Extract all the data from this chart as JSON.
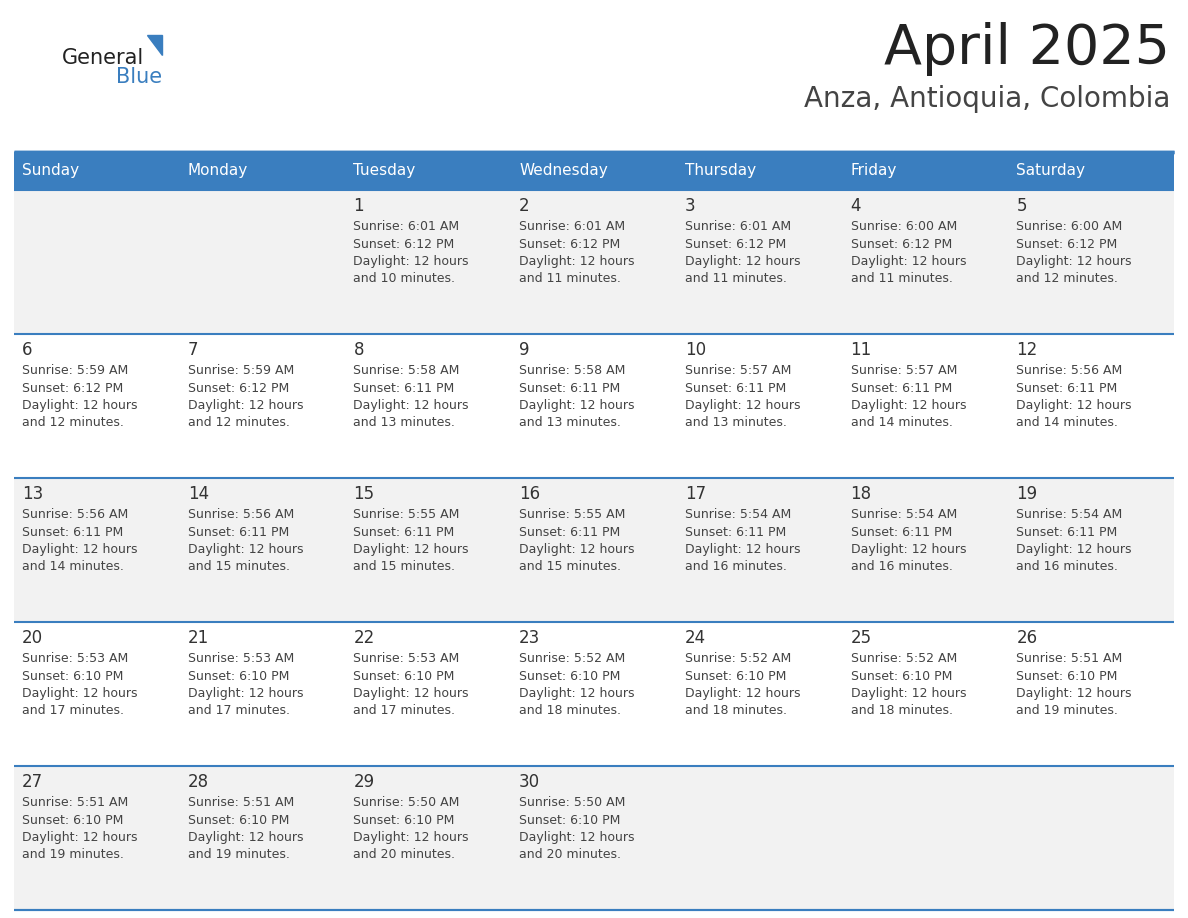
{
  "title": "April 2025",
  "subtitle": "Anza, Antioquia, Colombia",
  "days_of_week": [
    "Sunday",
    "Monday",
    "Tuesday",
    "Wednesday",
    "Thursday",
    "Friday",
    "Saturday"
  ],
  "header_bg": "#3a7ebf",
  "header_text": "#ffffff",
  "row_bg_odd": "#f2f2f2",
  "row_bg_even": "#ffffff",
  "separator_color": "#3a7ebf",
  "day_number_color": "#333333",
  "cell_text_color": "#444444",
  "title_color": "#222222",
  "subtitle_color": "#444444",
  "logo_text_color": "#222222",
  "logo_blue_color": "#3a7ebf",
  "calendar_data": [
    [
      null,
      null,
      {
        "day": 1,
        "sunrise": "6:01 AM",
        "sunset": "6:12 PM",
        "daylight_hrs": 12,
        "daylight_min": 10
      },
      {
        "day": 2,
        "sunrise": "6:01 AM",
        "sunset": "6:12 PM",
        "daylight_hrs": 12,
        "daylight_min": 11
      },
      {
        "day": 3,
        "sunrise": "6:01 AM",
        "sunset": "6:12 PM",
        "daylight_hrs": 12,
        "daylight_min": 11
      },
      {
        "day": 4,
        "sunrise": "6:00 AM",
        "sunset": "6:12 PM",
        "daylight_hrs": 12,
        "daylight_min": 11
      },
      {
        "day": 5,
        "sunrise": "6:00 AM",
        "sunset": "6:12 PM",
        "daylight_hrs": 12,
        "daylight_min": 12
      }
    ],
    [
      {
        "day": 6,
        "sunrise": "5:59 AM",
        "sunset": "6:12 PM",
        "daylight_hrs": 12,
        "daylight_min": 12
      },
      {
        "day": 7,
        "sunrise": "5:59 AM",
        "sunset": "6:12 PM",
        "daylight_hrs": 12,
        "daylight_min": 12
      },
      {
        "day": 8,
        "sunrise": "5:58 AM",
        "sunset": "6:11 PM",
        "daylight_hrs": 12,
        "daylight_min": 13
      },
      {
        "day": 9,
        "sunrise": "5:58 AM",
        "sunset": "6:11 PM",
        "daylight_hrs": 12,
        "daylight_min": 13
      },
      {
        "day": 10,
        "sunrise": "5:57 AM",
        "sunset": "6:11 PM",
        "daylight_hrs": 12,
        "daylight_min": 13
      },
      {
        "day": 11,
        "sunrise": "5:57 AM",
        "sunset": "6:11 PM",
        "daylight_hrs": 12,
        "daylight_min": 14
      },
      {
        "day": 12,
        "sunrise": "5:56 AM",
        "sunset": "6:11 PM",
        "daylight_hrs": 12,
        "daylight_min": 14
      }
    ],
    [
      {
        "day": 13,
        "sunrise": "5:56 AM",
        "sunset": "6:11 PM",
        "daylight_hrs": 12,
        "daylight_min": 14
      },
      {
        "day": 14,
        "sunrise": "5:56 AM",
        "sunset": "6:11 PM",
        "daylight_hrs": 12,
        "daylight_min": 15
      },
      {
        "day": 15,
        "sunrise": "5:55 AM",
        "sunset": "6:11 PM",
        "daylight_hrs": 12,
        "daylight_min": 15
      },
      {
        "day": 16,
        "sunrise": "5:55 AM",
        "sunset": "6:11 PM",
        "daylight_hrs": 12,
        "daylight_min": 15
      },
      {
        "day": 17,
        "sunrise": "5:54 AM",
        "sunset": "6:11 PM",
        "daylight_hrs": 12,
        "daylight_min": 16
      },
      {
        "day": 18,
        "sunrise": "5:54 AM",
        "sunset": "6:11 PM",
        "daylight_hrs": 12,
        "daylight_min": 16
      },
      {
        "day": 19,
        "sunrise": "5:54 AM",
        "sunset": "6:11 PM",
        "daylight_hrs": 12,
        "daylight_min": 16
      }
    ],
    [
      {
        "day": 20,
        "sunrise": "5:53 AM",
        "sunset": "6:10 PM",
        "daylight_hrs": 12,
        "daylight_min": 17
      },
      {
        "day": 21,
        "sunrise": "5:53 AM",
        "sunset": "6:10 PM",
        "daylight_hrs": 12,
        "daylight_min": 17
      },
      {
        "day": 22,
        "sunrise": "5:53 AM",
        "sunset": "6:10 PM",
        "daylight_hrs": 12,
        "daylight_min": 17
      },
      {
        "day": 23,
        "sunrise": "5:52 AM",
        "sunset": "6:10 PM",
        "daylight_hrs": 12,
        "daylight_min": 18
      },
      {
        "day": 24,
        "sunrise": "5:52 AM",
        "sunset": "6:10 PM",
        "daylight_hrs": 12,
        "daylight_min": 18
      },
      {
        "day": 25,
        "sunrise": "5:52 AM",
        "sunset": "6:10 PM",
        "daylight_hrs": 12,
        "daylight_min": 18
      },
      {
        "day": 26,
        "sunrise": "5:51 AM",
        "sunset": "6:10 PM",
        "daylight_hrs": 12,
        "daylight_min": 19
      }
    ],
    [
      {
        "day": 27,
        "sunrise": "5:51 AM",
        "sunset": "6:10 PM",
        "daylight_hrs": 12,
        "daylight_min": 19
      },
      {
        "day": 28,
        "sunrise": "5:51 AM",
        "sunset": "6:10 PM",
        "daylight_hrs": 12,
        "daylight_min": 19
      },
      {
        "day": 29,
        "sunrise": "5:50 AM",
        "sunset": "6:10 PM",
        "daylight_hrs": 12,
        "daylight_min": 20
      },
      {
        "day": 30,
        "sunrise": "5:50 AM",
        "sunset": "6:10 PM",
        "daylight_hrs": 12,
        "daylight_min": 20
      },
      null,
      null,
      null
    ]
  ]
}
